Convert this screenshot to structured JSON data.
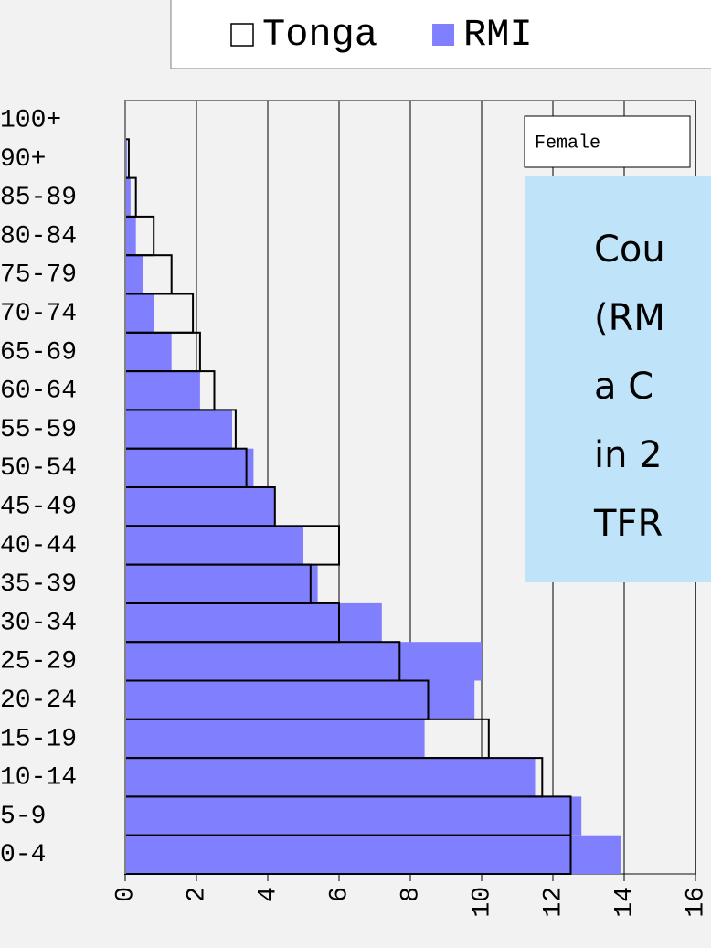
{
  "chart_data": {
    "type": "bar",
    "orientation": "horizontal",
    "categories": [
      "0-4",
      "5-9",
      "10-14",
      "15-19",
      "20-24",
      "25-29",
      "30-34",
      "35-39",
      "40-44",
      "45-49",
      "50-54",
      "55-59",
      "60-64",
      "65-69",
      "70-74",
      "75-79",
      "80-84",
      "85-89",
      "90+",
      "100+"
    ],
    "series": [
      {
        "name": "RMI",
        "color": "#8080ff",
        "style": "filled",
        "values": [
          13.9,
          12.8,
          11.5,
          8.4,
          9.8,
          10.0,
          7.2,
          5.4,
          5.0,
          4.2,
          3.6,
          3.0,
          2.1,
          1.3,
          0.8,
          0.5,
          0.3,
          0.15,
          0.05,
          null
        ]
      },
      {
        "name": "Tonga",
        "color": "#ffffff",
        "style": "outline",
        "values": [
          12.5,
          12.5,
          11.7,
          10.2,
          8.5,
          7.7,
          6.0,
          5.2,
          6.0,
          4.2,
          3.4,
          3.1,
          2.5,
          2.1,
          1.9,
          1.3,
          0.8,
          0.3,
          0.1,
          null
        ]
      }
    ],
    "legend_order": [
      "Tonga",
      "RMI"
    ],
    "xlim": [
      0,
      16
    ],
    "xticks": [
      0,
      2,
      4,
      6,
      8,
      10,
      12,
      14,
      16
    ],
    "grid": true,
    "annotation": "Female",
    "text_box": [
      "Cou",
      "(RM",
      "a C",
      "in 2",
      "TFR"
    ]
  }
}
